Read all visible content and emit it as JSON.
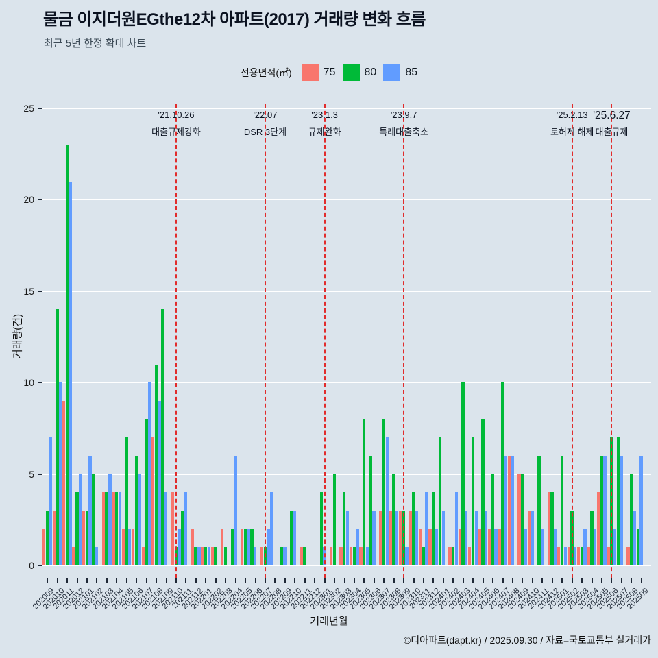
{
  "title": "물금 이지더원EGthe12차 아파트(2017) 거래량 변화 흐름",
  "subtitle": "최근 5년 한정 확대 차트",
  "legend": {
    "title": "전용면적(㎡)",
    "items": [
      {
        "label": "75",
        "color": "#f8766d"
      },
      {
        "label": "80",
        "color": "#00ba38"
      },
      {
        "label": "85",
        "color": "#619cff"
      }
    ]
  },
  "axes": {
    "y_label": "거래량(건)",
    "x_label": "거래년월",
    "y_ticks": [
      0,
      5,
      10,
      15,
      20,
      25
    ]
  },
  "annotations": [
    {
      "month": "202110",
      "date": "'21.10.26",
      "label": "대출규제강화",
      "emphasis": false
    },
    {
      "month": "202207",
      "date": "'22.07",
      "label": "DSR 3단계",
      "emphasis": false
    },
    {
      "month": "202301",
      "date": "'23.1.3",
      "label": "규제완화",
      "emphasis": false
    },
    {
      "month": "202309",
      "date": "'23.9.7",
      "label": "특례대출축소",
      "emphasis": false
    },
    {
      "month": "202502",
      "date": "'25.2.13",
      "label": "토허제 해제",
      "emphasis": false
    },
    {
      "month": "202506",
      "date": "'25.6.27",
      "label": "대출규제",
      "emphasis": true
    }
  ],
  "footer": "©디아파트(dapt.kr) / 2025.09.30 / 자료=국토교통부 실거래가",
  "chart_data": {
    "type": "bar",
    "title": "물금 이지더원EGthe12차 아파트(2017) 거래량 변화 흐름",
    "xlabel": "거래년월",
    "ylabel": "거래량(건)",
    "ylim": [
      0,
      25
    ],
    "grid": "horizontal-white-major",
    "legend_position": "top-center",
    "event_line_color": "#e12c2c",
    "categories": [
      "202009",
      "202010",
      "202011",
      "202012",
      "202101",
      "202102",
      "202103",
      "202104",
      "202105",
      "202106",
      "202107",
      "202108",
      "202109",
      "202110",
      "202111",
      "202112",
      "202201",
      "202202",
      "202203",
      "202204",
      "202205",
      "202206",
      "202207",
      "202208",
      "202209",
      "202210",
      "202211",
      "202212",
      "202301",
      "202302",
      "202303",
      "202304",
      "202305",
      "202306",
      "202307",
      "202308",
      "202309",
      "202310",
      "202311",
      "202312",
      "202401",
      "202402",
      "202403",
      "202404",
      "202405",
      "202406",
      "202407",
      "202408",
      "202409",
      "202410",
      "202411",
      "202412",
      "202501",
      "202502",
      "202503",
      "202504",
      "202505",
      "202506",
      "202507",
      "202508",
      "202509"
    ],
    "series": [
      {
        "name": "75",
        "color": "#f8766d",
        "values": [
          2,
          3,
          9,
          1,
          3,
          0,
          4,
          4,
          2,
          2,
          1,
          7,
          0,
          4,
          0,
          2,
          1,
          1,
          2,
          0,
          2,
          0,
          1,
          0,
          0,
          0,
          1,
          0,
          0,
          1,
          1,
          1,
          1,
          0,
          3,
          3,
          3,
          3,
          2,
          2,
          0,
          1,
          2,
          1,
          2,
          2,
          2,
          6,
          5,
          3,
          0,
          4,
          1,
          1,
          1,
          1,
          4,
          1,
          0,
          1,
          0
        ]
      },
      {
        "name": "80",
        "color": "#00ba38",
        "values": [
          3,
          14,
          23,
          4,
          3,
          5,
          4,
          4,
          7,
          6,
          8,
          11,
          14,
          1,
          3,
          1,
          1,
          1,
          1,
          2,
          2,
          2,
          1,
          0,
          1,
          3,
          1,
          0,
          4,
          5,
          4,
          1,
          8,
          6,
          8,
          5,
          3,
          4,
          1,
          4,
          7,
          1,
          10,
          7,
          8,
          5,
          10,
          0,
          5,
          0,
          6,
          4,
          6,
          3,
          1,
          3,
          6,
          7,
          7,
          5,
          2
        ]
      },
      {
        "name": "85",
        "color": "#619cff",
        "values": [
          7,
          10,
          21,
          5,
          6,
          1,
          5,
          4,
          2,
          5,
          10,
          9,
          4,
          2,
          4,
          1,
          1,
          0,
          0,
          6,
          2,
          1,
          2,
          4,
          1,
          3,
          0,
          0,
          1,
          0,
          3,
          2,
          1,
          3,
          7,
          3,
          1,
          3,
          4,
          2,
          3,
          4,
          3,
          3,
          3,
          2,
          6,
          6,
          2,
          3,
          2,
          2,
          1,
          1,
          2,
          2,
          6,
          2,
          6,
          3,
          6
        ]
      }
    ]
  }
}
